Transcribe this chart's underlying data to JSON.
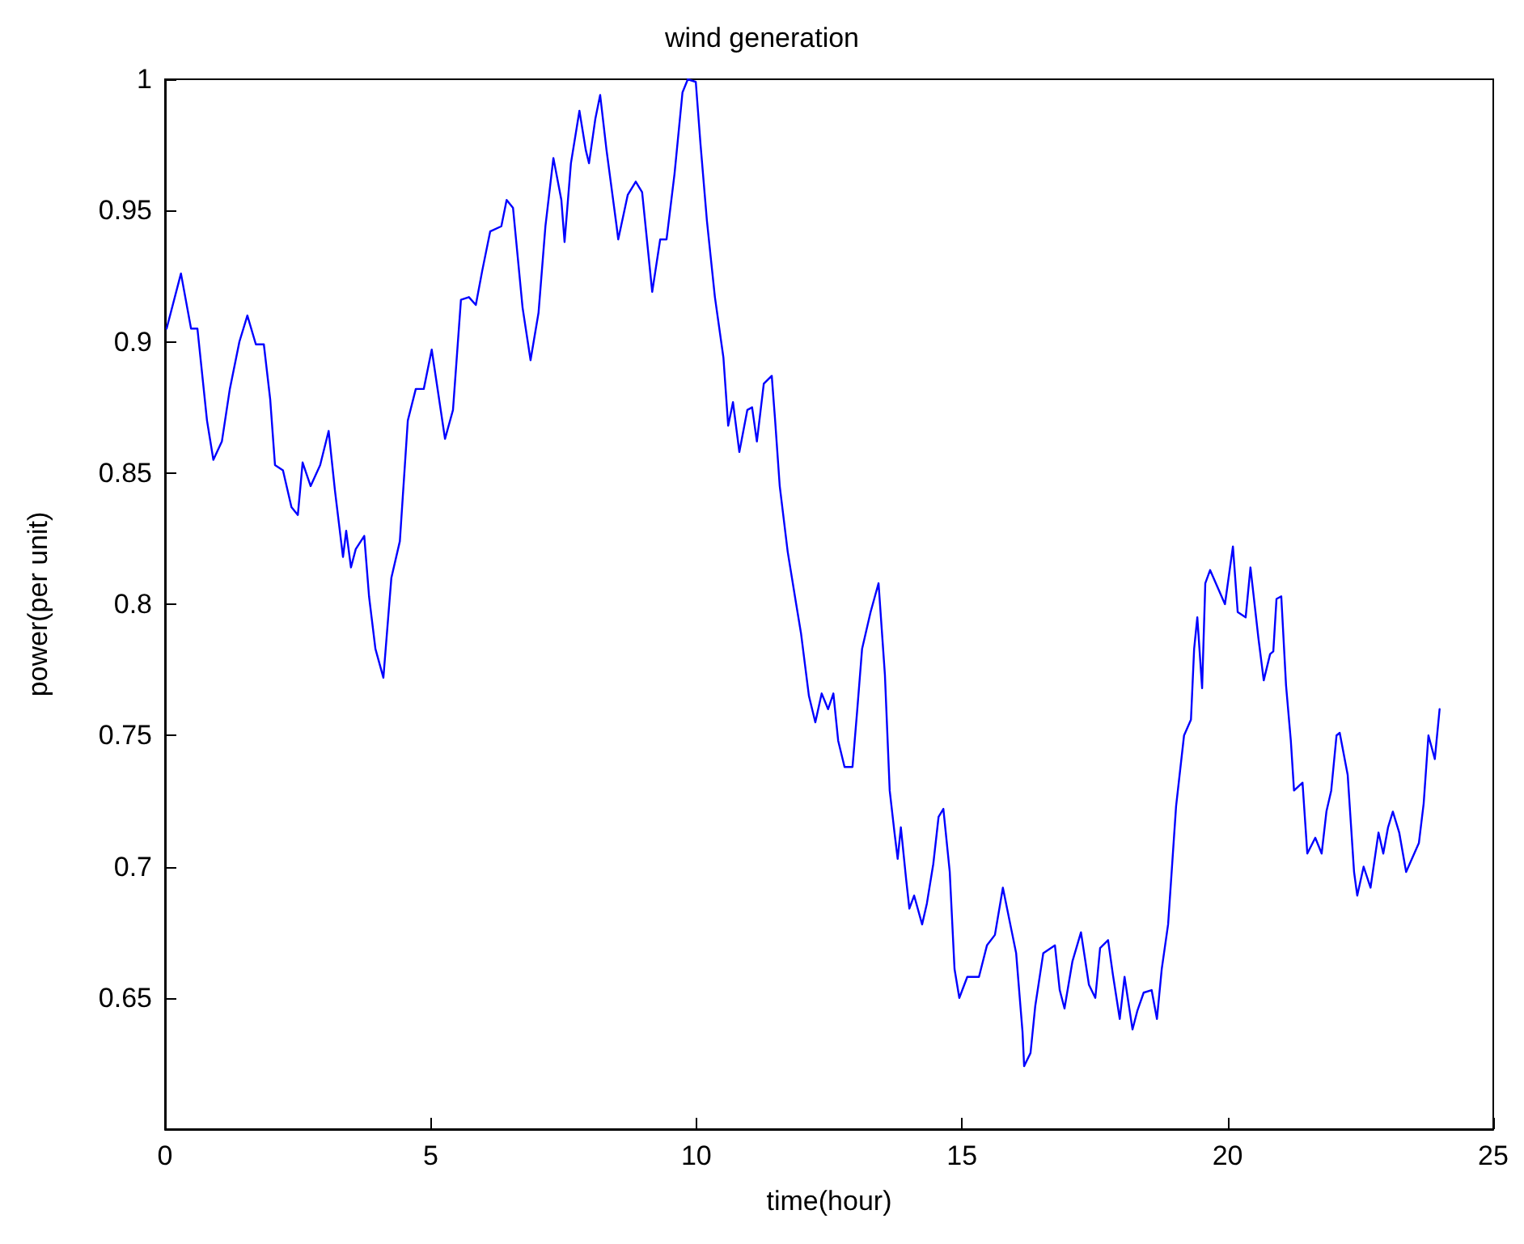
{
  "chart_data": {
    "type": "line",
    "title": "wind generation",
    "xlabel": "time(hour)",
    "ylabel": "power(per unit)",
    "xlim": [
      0,
      25
    ],
    "xticks": [
      0,
      5,
      10,
      15,
      20,
      25
    ],
    "ylim": [
      0.6,
      1
    ],
    "yticks": [
      0.65,
      0.7,
      0.75,
      0.8,
      0.85,
      0.9,
      0.95,
      1
    ],
    "grid": false,
    "marker": "none",
    "line_style": "solid",
    "series": [
      {
        "color": "#0000ff",
        "x": [
          0.03,
          0.3,
          0.49,
          0.61,
          0.79,
          0.91,
          1.07,
          1.22,
          1.4,
          1.55,
          1.71,
          1.86,
          1.98,
          2.07,
          2.22,
          2.38,
          2.5,
          2.59,
          2.74,
          2.92,
          3.08,
          3.2,
          3.35,
          3.41,
          3.5,
          3.59,
          3.75,
          3.84,
          3.96,
          4.11,
          4.26,
          4.42,
          4.57,
          4.72,
          4.87,
          5.02,
          5.27,
          5.42,
          5.57,
          5.72,
          5.85,
          5.97,
          6.12,
          6.33,
          6.43,
          6.55,
          6.73,
          6.88,
          7.03,
          7.16,
          7.31,
          7.46,
          7.52,
          7.64,
          7.8,
          7.92,
          7.98,
          8.1,
          8.19,
          8.31,
          8.5,
          8.53,
          8.71,
          8.86,
          8.98,
          9.17,
          9.32,
          9.44,
          9.59,
          9.74,
          9.84,
          9.99,
          10.08,
          10.2,
          10.35,
          10.51,
          10.6,
          10.69,
          10.81,
          10.96,
          11.05,
          11.14,
          11.27,
          11.42,
          11.48,
          11.57,
          11.72,
          11.88,
          11.97,
          12.12,
          12.24,
          12.36,
          12.48,
          12.58,
          12.67,
          12.79,
          12.94,
          13.03,
          13.12,
          13.28,
          13.43,
          13.55,
          13.64,
          13.73,
          13.79,
          13.85,
          13.95,
          14.01,
          14.1,
          14.25,
          14.34,
          14.46,
          14.56,
          14.65,
          14.77,
          14.86,
          14.95,
          15.1,
          15.32,
          15.47,
          15.62,
          15.77,
          15.93,
          16.02,
          16.14,
          16.17,
          16.29,
          16.38,
          16.53,
          16.75,
          16.84,
          16.93,
          17.08,
          17.24,
          17.39,
          17.51,
          17.6,
          17.75,
          17.84,
          17.97,
          18.06,
          18.21,
          18.3,
          18.42,
          18.57,
          18.67,
          18.76,
          18.88,
          19.03,
          19.18,
          19.31,
          19.37,
          19.43,
          19.52,
          19.58,
          19.67,
          19.95,
          20.1,
          20.19,
          20.34,
          20.43,
          20.58,
          20.68,
          20.8,
          20.86,
          20.92,
          21.01,
          21.1,
          21.19,
          21.25,
          21.41,
          21.5,
          21.65,
          21.77,
          21.86,
          21.95,
          22.05,
          22.11,
          22.26,
          22.38,
          22.44,
          22.56,
          22.69,
          22.84,
          22.93,
          23.02,
          23.11,
          23.23,
          23.36,
          23.6,
          23.69,
          23.78,
          23.9,
          23.99
        ],
        "values": [
          0.905,
          0.926,
          0.905,
          0.905,
          0.87,
          0.855,
          0.862,
          0.882,
          0.9,
          0.91,
          0.899,
          0.899,
          0.878,
          0.853,
          0.851,
          0.837,
          0.834,
          0.854,
          0.845,
          0.853,
          0.866,
          0.843,
          0.818,
          0.828,
          0.814,
          0.821,
          0.826,
          0.803,
          0.783,
          0.772,
          0.81,
          0.824,
          0.87,
          0.882,
          0.882,
          0.897,
          0.863,
          0.874,
          0.916,
          0.917,
          0.914,
          0.927,
          0.942,
          0.944,
          0.954,
          0.951,
          0.913,
          0.893,
          0.911,
          0.944,
          0.97,
          0.954,
          0.938,
          0.968,
          0.988,
          0.973,
          0.968,
          0.985,
          0.994,
          0.973,
          0.944,
          0.939,
          0.956,
          0.961,
          0.957,
          0.919,
          0.939,
          0.939,
          0.964,
          0.995,
          1.0,
          0.999,
          0.975,
          0.946,
          0.917,
          0.894,
          0.868,
          0.877,
          0.858,
          0.874,
          0.875,
          0.862,
          0.884,
          0.887,
          0.871,
          0.845,
          0.82,
          0.8,
          0.789,
          0.765,
          0.755,
          0.766,
          0.76,
          0.766,
          0.748,
          0.738,
          0.738,
          0.76,
          0.783,
          0.797,
          0.808,
          0.773,
          0.729,
          0.713,
          0.703,
          0.715,
          0.695,
          0.684,
          0.689,
          0.678,
          0.686,
          0.701,
          0.719,
          0.722,
          0.698,
          0.661,
          0.65,
          0.658,
          0.658,
          0.67,
          0.674,
          0.692,
          0.676,
          0.667,
          0.637,
          0.624,
          0.629,
          0.647,
          0.667,
          0.67,
          0.653,
          0.646,
          0.664,
          0.675,
          0.655,
          0.65,
          0.669,
          0.672,
          0.659,
          0.642,
          0.658,
          0.638,
          0.645,
          0.652,
          0.653,
          0.642,
          0.661,
          0.678,
          0.723,
          0.75,
          0.756,
          0.783,
          0.795,
          0.768,
          0.808,
          0.813,
          0.8,
          0.822,
          0.797,
          0.795,
          0.814,
          0.787,
          0.771,
          0.781,
          0.782,
          0.802,
          0.803,
          0.769,
          0.748,
          0.729,
          0.732,
          0.705,
          0.711,
          0.705,
          0.721,
          0.729,
          0.75,
          0.751,
          0.735,
          0.698,
          0.689,
          0.7,
          0.692,
          0.713,
          0.705,
          0.715,
          0.721,
          0.713,
          0.698,
          0.709,
          0.724,
          0.75,
          0.741,
          0.76
        ]
      }
    ]
  }
}
